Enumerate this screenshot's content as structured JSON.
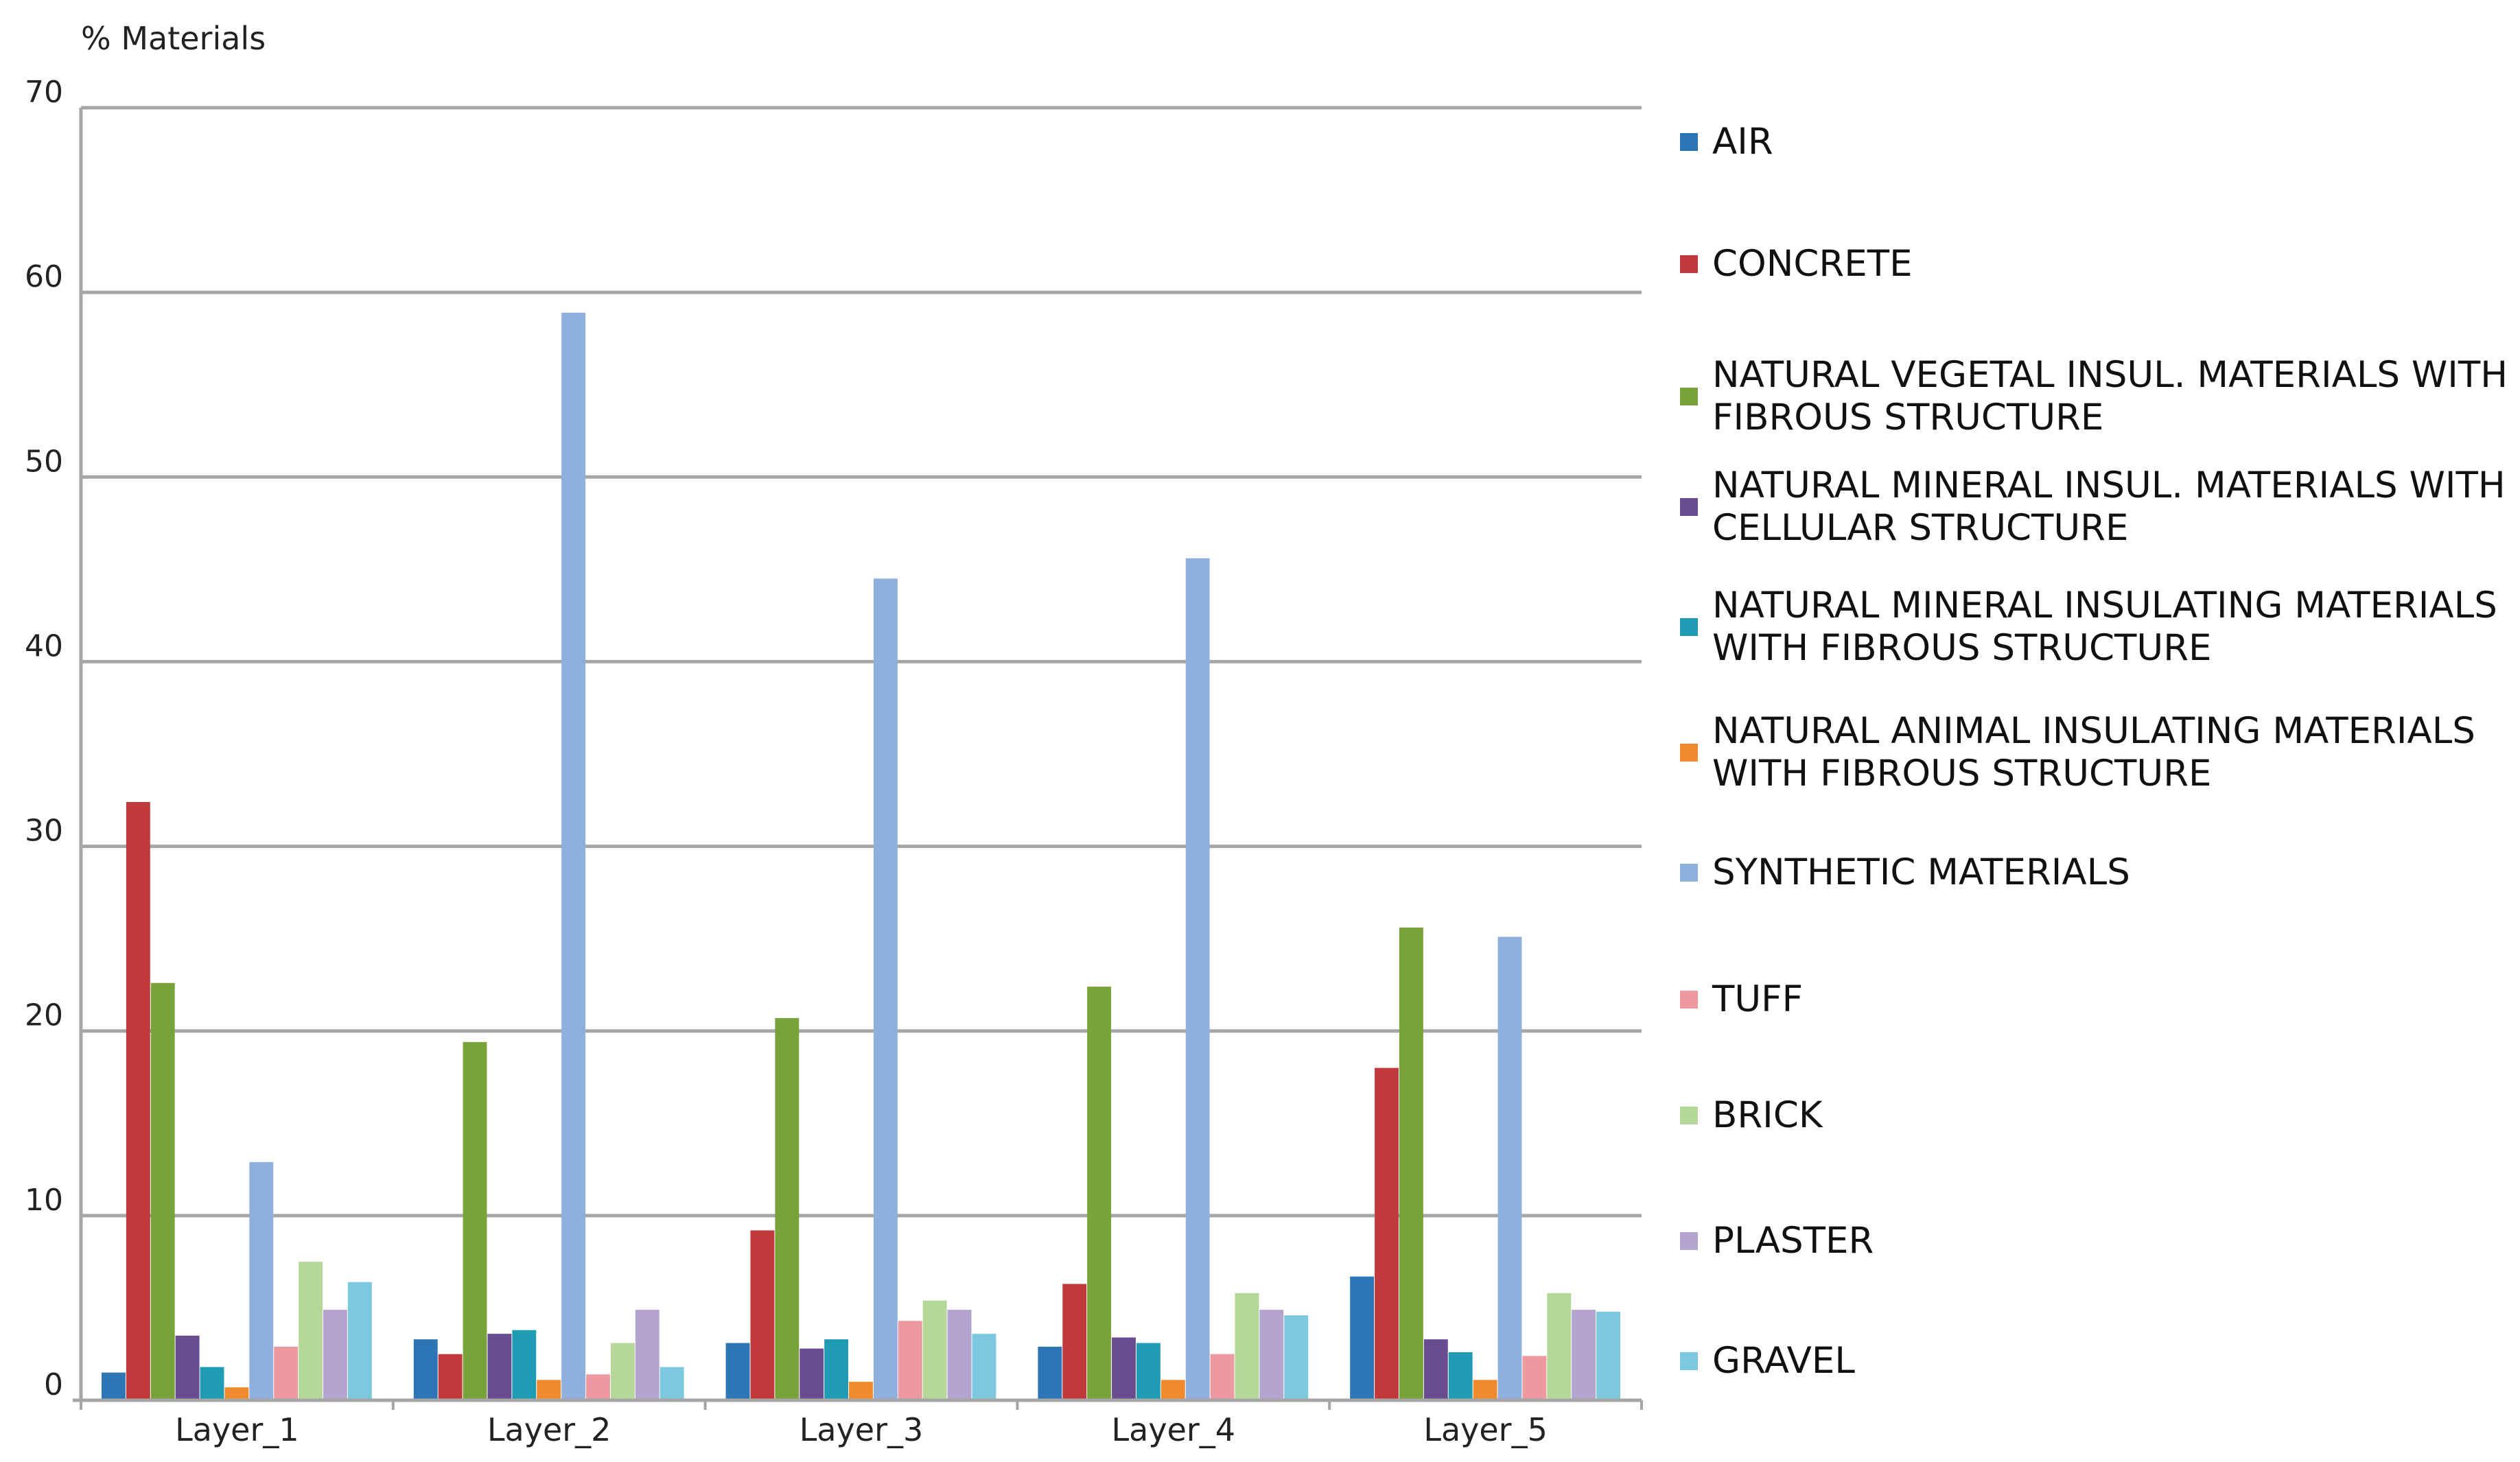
{
  "chart_data": {
    "type": "bar",
    "title": "",
    "ylabel": "% Materials",
    "xlabel": "",
    "ylim": [
      0,
      70
    ],
    "yticks": [
      0,
      10,
      20,
      30,
      40,
      50,
      60,
      70
    ],
    "grid": true,
    "legend_position": "right",
    "categories": [
      "Layer_1",
      "Layer_2",
      "Layer_3",
      "Layer_4",
      "Layer_5"
    ],
    "series": [
      {
        "name": "AIR",
        "color": "#2E75B6",
        "values": [
          1.5,
          3.3,
          3.1,
          2.9,
          6.7
        ]
      },
      {
        "name": "CONCRETE",
        "color": "#C0393B",
        "values": [
          32.4,
          2.5,
          9.2,
          6.3,
          18.0
        ]
      },
      {
        "name": "NATURAL VEGETAL INSUL. MATERIALS WITH FIBROUS STRUCTURE",
        "color": "#77A33A",
        "values": [
          22.6,
          19.4,
          20.7,
          22.4,
          25.6
        ]
      },
      {
        "name": "NATURAL MINERAL INSUL. MATERIALS WITH CELLULAR STRUCTURE",
        "color": "#6A4C93",
        "values": [
          3.5,
          3.6,
          2.8,
          3.4,
          3.3
        ]
      },
      {
        "name": "NATURAL MINERAL INSULATING MATERIALS WITH FIBROUS STRUCTURE",
        "color": "#1F9BB3",
        "values": [
          1.8,
          3.8,
          3.3,
          3.1,
          2.6
        ]
      },
      {
        "name": "NATURAL ANIMAL INSULATING MATERIALS WITH FIBROUS STRUCTURE",
        "color": "#F08A2C",
        "values": [
          0.7,
          1.1,
          1.0,
          1.1,
          1.1
        ]
      },
      {
        "name": "SYNTHETIC MATERIALS",
        "color": "#8FB0DD",
        "values": [
          12.9,
          58.9,
          44.5,
          45.6,
          25.1
        ]
      },
      {
        "name": "TUFF",
        "color": "#EC9AA0",
        "values": [
          2.9,
          1.4,
          4.3,
          2.5,
          2.4
        ]
      },
      {
        "name": "BRICK",
        "color": "#B5D79A",
        "values": [
          7.5,
          3.1,
          5.4,
          5.8,
          5.8
        ]
      },
      {
        "name": "PLASTER",
        "color": "#B3A5CF",
        "values": [
          4.9,
          4.9,
          4.9,
          4.9,
          4.9
        ]
      },
      {
        "name": "GRAVEL",
        "color": "#7CC8DE",
        "values": [
          6.4,
          1.8,
          3.6,
          4.6,
          4.8
        ]
      }
    ]
  }
}
